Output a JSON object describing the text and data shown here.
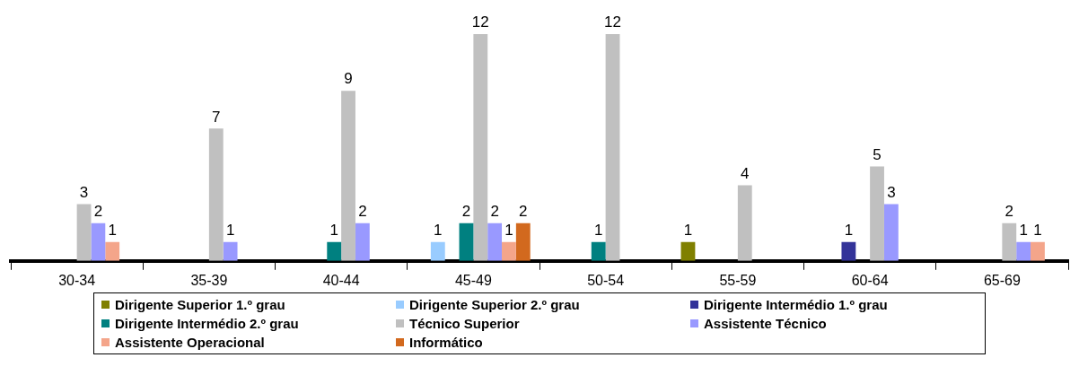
{
  "chart_data": {
    "type": "bar",
    "categories": [
      "30-34",
      "35-39",
      "40-44",
      "45-49",
      "50-54",
      "55-59",
      "60-64",
      "65-69"
    ],
    "series": [
      {
        "name": "Dirigente Superior  1.º grau",
        "color": "#808000",
        "values": [
          null,
          null,
          null,
          null,
          null,
          1,
          null,
          null
        ]
      },
      {
        "name": "Dirigente Superior  2.º grau",
        "color": "#99ccff",
        "values": [
          null,
          null,
          null,
          1,
          null,
          null,
          null,
          null
        ]
      },
      {
        "name": "Dirigente Intermédio 1.º grau",
        "color": "#333399",
        "values": [
          null,
          null,
          null,
          null,
          null,
          null,
          1,
          null
        ]
      },
      {
        "name": "Dirigente Intermédio 2.º grau",
        "color": "#008080",
        "values": [
          null,
          null,
          1,
          2,
          1,
          null,
          null,
          null
        ]
      },
      {
        "name": "Técnico Superior",
        "color": "#c0c0c0",
        "values": [
          3,
          7,
          9,
          12,
          12,
          4,
          5,
          2
        ]
      },
      {
        "name": "Assistente Técnico",
        "color": "#9999ff",
        "values": [
          2,
          1,
          2,
          2,
          null,
          null,
          3,
          1
        ]
      },
      {
        "name": "Assistente Operacional",
        "color": "#f4a58a",
        "values": [
          1,
          null,
          null,
          1,
          null,
          null,
          null,
          1
        ]
      },
      {
        "name": "Informático",
        "color": "#d2691e",
        "values": [
          null,
          null,
          null,
          2,
          null,
          null,
          null,
          null
        ]
      }
    ],
    "data_labels": true,
    "grid": false,
    "legend": "bottom"
  }
}
